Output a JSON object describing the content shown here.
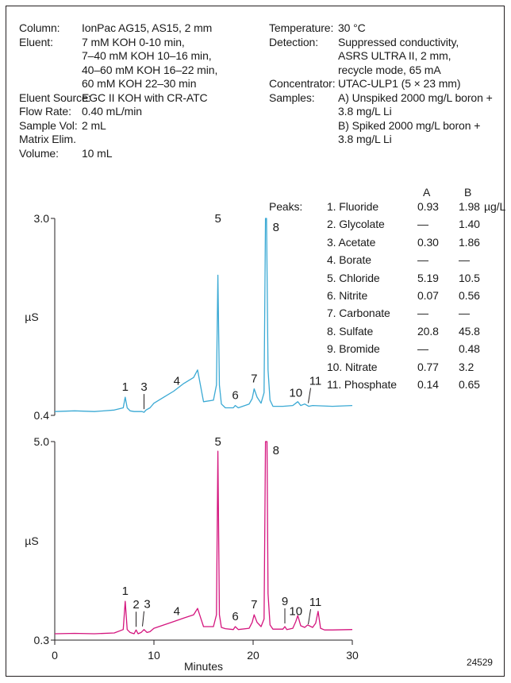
{
  "conditions": {
    "left": [
      {
        "label": "Column:",
        "lines": [
          "IonPac AG15, AS15, 2 mm"
        ]
      },
      {
        "label": "Eluent:",
        "lines": [
          "7 mM KOH 0-10 min,",
          "7–40 mM KOH 10–16 min,",
          "40–60 mM KOH 16–22 min,",
          "60 mM KOH 22–30 min"
        ]
      },
      {
        "label": "Eluent Source:",
        "lines": [
          "EGC II KOH with CR-ATC"
        ]
      },
      {
        "label": "Flow Rate:",
        "lines": [
          "0.40 mL/min"
        ]
      },
      {
        "label": "Sample Vol:",
        "lines": [
          "2 mL"
        ]
      },
      {
        "label": "Matrix Elim.",
        "lines": [
          ""
        ]
      },
      {
        "label": "Volume:",
        "lines": [
          "10 mL"
        ]
      }
    ],
    "right": [
      {
        "label": "Temperature:",
        "lines": [
          "30 °C"
        ]
      },
      {
        "label": "Detection:",
        "lines": [
          "Suppressed conductivity,",
          "ASRS ULTRA  II, 2 mm,",
          "recycle mode, 65 mA"
        ]
      },
      {
        "label": "Concentrator:",
        "lines": [
          "UTAC-ULP1 (5 × 23 mm)"
        ]
      },
      {
        "label": "Samples:",
        "lines": [
          "A) Unspiked 2000 mg/L boron +",
          "     3.8 mg/L Li",
          "B) Spiked 2000 mg/L boron +",
          "     3.8 mg/L Li"
        ]
      }
    ]
  },
  "peak_table": {
    "label": "Peaks:",
    "col_a": "A",
    "col_b": "B",
    "unit": "µg/L",
    "rows": [
      {
        "name": "1. Fluoride",
        "a": "0.93",
        "b": "1.98"
      },
      {
        "name": "2. Glycolate",
        "a": "—",
        "b": "1.40"
      },
      {
        "name": "3. Acetate",
        "a": "0.30",
        "b": "1.86"
      },
      {
        "name": "4. Borate",
        "a": "—",
        "b": "—"
      },
      {
        "name": "5. Chloride",
        "a": "5.19",
        "b": "10.5"
      },
      {
        "name": "6. Nitrite",
        "a": "0.07",
        "b": "0.56"
      },
      {
        "name": "7. Carbonate",
        "a": "—",
        "b": "—"
      },
      {
        "name": "8. Sulfate",
        "a": "20.8",
        "b": "45.8"
      },
      {
        "name": "9. Bromide",
        "a": "—",
        "b": "0.48"
      },
      {
        "name": "10. Nitrate",
        "a": "0.77",
        "b": "3.2"
      },
      {
        "name": "11. Phosphate",
        "a": "0.14",
        "b": "0.65"
      }
    ]
  },
  "figure_id": "24529",
  "chart_data": [
    {
      "type": "line",
      "name": "A",
      "color": "#3aa9d4",
      "ylabel": "µS",
      "ylim": [
        0.4,
        3.0
      ],
      "yticks": [
        "3.0",
        "0.4"
      ],
      "xlim": [
        0,
        30
      ],
      "series": [
        {
          "x": [
            0,
            2,
            4,
            6,
            6.9,
            7.1,
            7.3,
            7.6,
            8,
            8.8,
            9.0,
            9.2,
            9.6,
            10,
            11,
            12,
            13,
            14,
            14.4,
            15,
            16,
            16.3,
            16.45,
            16.6,
            16.8,
            17.2,
            18,
            18.2,
            18.5,
            19.6,
            19.9,
            20.1,
            20.4,
            20.8,
            21.1,
            21.25,
            21.35,
            21.5,
            21.7,
            22,
            23,
            24,
            24.3,
            24.5,
            24.8,
            25.2,
            25.6,
            26,
            28,
            30
          ],
          "y": [
            0.45,
            0.46,
            0.45,
            0.47,
            0.5,
            0.64,
            0.5,
            0.46,
            0.45,
            0.45,
            0.44,
            0.47,
            0.5,
            0.56,
            0.64,
            0.72,
            0.82,
            0.9,
            1.0,
            0.58,
            0.6,
            0.8,
            2.25,
            0.8,
            0.55,
            0.5,
            0.5,
            0.53,
            0.5,
            0.55,
            0.62,
            0.75,
            0.64,
            0.56,
            0.7,
            3.0,
            3.0,
            1.0,
            0.6,
            0.52,
            0.52,
            0.53,
            0.56,
            0.58,
            0.53,
            0.55,
            0.52,
            0.53,
            0.52,
            0.53
          ]
        }
      ],
      "peak_labels": [
        {
          "label": "1",
          "x": 7.1
        },
        {
          "label": "3",
          "x": 9.0
        },
        {
          "label": "4",
          "x": 12.3
        },
        {
          "label": "5",
          "x": 16.45
        },
        {
          "label": "6",
          "x": 18.2
        },
        {
          "label": "7",
          "x": 20.1
        },
        {
          "label": "8",
          "x": 22.3
        },
        {
          "label": "10",
          "x": 24.3
        },
        {
          "label": "11",
          "x": 25.8
        }
      ]
    },
    {
      "type": "line",
      "name": "B",
      "color": "#d4157e",
      "ylabel": "µS",
      "ylim": [
        0.3,
        5.0
      ],
      "yticks": [
        "5.0",
        "0.3"
      ],
      "xlim": [
        0,
        30
      ],
      "xticks": [
        0,
        10,
        20,
        30
      ],
      "xlabel": "Minutes",
      "series": [
        {
          "x": [
            0,
            2,
            4,
            6,
            6.9,
            7.1,
            7.3,
            7.6,
            8,
            8.2,
            8.4,
            8.7,
            9.0,
            9.3,
            9.6,
            10,
            11,
            12,
            13,
            14,
            14.4,
            15,
            16,
            16.3,
            16.45,
            16.6,
            16.8,
            17.2,
            18,
            18.2,
            18.5,
            19.6,
            19.9,
            20.1,
            20.4,
            20.8,
            21.1,
            21.25,
            21.4,
            21.5,
            21.7,
            22,
            23,
            23.2,
            23.4,
            24,
            24.3,
            24.5,
            24.8,
            25.2,
            25.5,
            26,
            26.3,
            26.55,
            26.8,
            27.2,
            28,
            30
          ],
          "y": [
            0.45,
            0.46,
            0.45,
            0.47,
            0.55,
            1.22,
            0.55,
            0.48,
            0.45,
            0.54,
            0.45,
            0.48,
            0.55,
            0.48,
            0.5,
            0.58,
            0.66,
            0.74,
            0.82,
            0.9,
            1.05,
            0.62,
            0.62,
            0.9,
            4.77,
            0.9,
            0.6,
            0.57,
            0.55,
            0.62,
            0.55,
            0.58,
            0.72,
            0.9,
            0.72,
            0.62,
            0.8,
            5.0,
            5.0,
            1.4,
            0.66,
            0.56,
            0.56,
            0.62,
            0.55,
            0.58,
            0.74,
            0.88,
            0.64,
            0.6,
            0.66,
            0.6,
            0.7,
            0.98,
            0.58,
            0.54,
            0.54,
            0.55
          ]
        }
      ],
      "peak_labels": [
        {
          "label": "1",
          "x": 7.1
        },
        {
          "label": "2",
          "x": 8.2
        },
        {
          "label": "3",
          "x": 9.0
        },
        {
          "label": "4",
          "x": 12.3
        },
        {
          "label": "5",
          "x": 16.45
        },
        {
          "label": "6",
          "x": 18.2
        },
        {
          "label": "7",
          "x": 20.1
        },
        {
          "label": "8",
          "x": 22.3
        },
        {
          "label": "9",
          "x": 23.2
        },
        {
          "label": "10",
          "x": 24.3
        },
        {
          "label": "11",
          "x": 25.8
        }
      ]
    }
  ]
}
